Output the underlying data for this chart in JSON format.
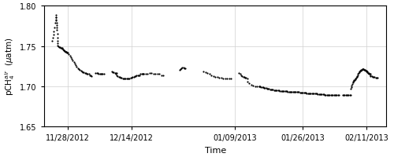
{
  "xlabel": "Time",
  "ylim": [
    1.65,
    1.8
  ],
  "yticks": [
    1.65,
    1.7,
    1.75,
    1.8
  ],
  "background_color": "#ffffff",
  "dot_color": "#000000",
  "dot_size": 2.5,
  "grid_color": "#d0d0d0",
  "xlim_start": "2012-11-22",
  "xlim_end": "2013-02-16",
  "xtick_dates": [
    "2012-11-28",
    "2012-12-14",
    "2013-01-09",
    "2013-01-26",
    "2013-02-11"
  ],
  "xtick_labels": [
    "11/28/2012",
    "12/14/2012",
    "01/09/2013",
    "01/26/2013",
    "02/11/2013"
  ],
  "segments": [
    {
      "dates_offsets_from": "2012-11-24",
      "offsets_hours": [
        0,
        4,
        8,
        12,
        16,
        20,
        22,
        23,
        24,
        25,
        26,
        27,
        28,
        29,
        30,
        32,
        34,
        36
      ],
      "values": [
        1.756,
        1.76,
        1.764,
        1.768,
        1.773,
        1.779,
        1.783,
        1.786,
        1.788,
        1.786,
        1.782,
        1.779,
        1.776,
        1.773,
        1.77,
        1.765,
        1.76,
        1.756
      ]
    },
    {
      "dates_offsets_from": "2012-11-25",
      "offsets_hours": [
        8,
        12,
        16,
        20,
        24,
        28,
        32,
        36,
        40,
        44,
        48
      ],
      "values": [
        1.753,
        1.751,
        1.75,
        1.749,
        1.749,
        1.748,
        1.748,
        1.748,
        1.747,
        1.746,
        1.745
      ]
    },
    {
      "dates_offsets_from": "2012-11-27",
      "offsets_hours": [
        0,
        3,
        6,
        9,
        12,
        15,
        18,
        21
      ],
      "values": [
        1.745,
        1.744,
        1.744,
        1.743,
        1.743,
        1.743,
        1.742,
        1.742
      ]
    },
    {
      "dates_offsets_from": "2012-11-28",
      "offsets_hours": [
        0,
        6,
        12,
        18,
        24,
        30,
        36,
        42,
        48,
        54,
        60,
        66,
        72,
        78,
        84,
        90,
        96,
        102,
        108,
        114,
        120,
        126,
        132,
        138,
        144
      ],
      "values": [
        1.742,
        1.74,
        1.738,
        1.736,
        1.734,
        1.732,
        1.73,
        1.728,
        1.726,
        1.724,
        1.722,
        1.721,
        1.72,
        1.719,
        1.718,
        1.717,
        1.717,
        1.716,
        1.716,
        1.715,
        1.715,
        1.715,
        1.714,
        1.714,
        1.713
      ]
    },
    {
      "dates_offsets_from": "2012-12-05",
      "offsets_hours": [
        0,
        6,
        12,
        18,
        24,
        30,
        36,
        42,
        48
      ],
      "values": [
        1.716,
        1.716,
        1.716,
        1.715,
        1.715,
        1.715,
        1.715,
        1.715,
        1.715
      ]
    },
    {
      "dates_offsets_from": "2012-12-09",
      "offsets_hours": [
        0,
        6,
        12,
        18,
        24,
        30
      ],
      "values": [
        1.718,
        1.717,
        1.717,
        1.716,
        1.716,
        1.716
      ]
    },
    {
      "dates_offsets_from": "2012-12-10",
      "offsets_hours": [
        0,
        6,
        12,
        18,
        24,
        30,
        36,
        42,
        48,
        54,
        60,
        66,
        72,
        78,
        84,
        90,
        96,
        102,
        108,
        114,
        120,
        126,
        132,
        138,
        144,
        150,
        156,
        162,
        168
      ],
      "values": [
        1.715,
        1.714,
        1.713,
        1.712,
        1.712,
        1.711,
        1.711,
        1.71,
        1.71,
        1.71,
        1.71,
        1.71,
        1.71,
        1.71,
        1.71,
        1.711,
        1.711,
        1.712,
        1.712,
        1.713,
        1.713,
        1.714,
        1.714,
        1.714,
        1.714,
        1.715,
        1.715,
        1.715,
        1.715
      ]
    },
    {
      "dates_offsets_from": "2012-12-17",
      "offsets_hours": [
        0,
        12,
        24,
        36,
        48,
        60,
        72,
        84,
        96,
        108,
        120
      ],
      "values": [
        1.715,
        1.715,
        1.715,
        1.716,
        1.716,
        1.715,
        1.715,
        1.715,
        1.715,
        1.714,
        1.714
      ]
    },
    {
      "dates_offsets_from": "2012-12-26",
      "offsets_hours": [
        0,
        6,
        12,
        18,
        24,
        30,
        36
      ],
      "values": [
        1.72,
        1.721,
        1.722,
        1.723,
        1.723,
        1.722,
        1.722
      ]
    },
    {
      "dates_offsets_from": "2013-01-01",
      "offsets_hours": [
        0,
        12,
        24,
        36,
        48,
        60,
        72,
        84,
        96,
        108,
        120,
        132,
        144,
        156,
        168
      ],
      "values": [
        1.718,
        1.717,
        1.716,
        1.715,
        1.714,
        1.713,
        1.712,
        1.712,
        1.711,
        1.711,
        1.71,
        1.71,
        1.71,
        1.71,
        1.71
      ]
    },
    {
      "dates_offsets_from": "2013-01-10",
      "offsets_hours": [
        0,
        6,
        12,
        18,
        24,
        30,
        36,
        42,
        48
      ],
      "values": [
        1.716,
        1.715,
        1.714,
        1.713,
        1.712,
        1.712,
        1.711,
        1.711,
        1.71
      ]
    },
    {
      "dates_offsets_from": "2013-01-12",
      "offsets_hours": [
        0,
        12,
        24,
        36,
        48,
        60,
        72
      ],
      "values": [
        1.706,
        1.704,
        1.702,
        1.701,
        1.7,
        1.7,
        1.7
      ]
    },
    {
      "dates_offsets_from": "2013-01-15",
      "offsets_hours": [
        0,
        6,
        12,
        18,
        24,
        30,
        36,
        42,
        48,
        54,
        60,
        66,
        72,
        78,
        84,
        90,
        96,
        102,
        108,
        114,
        120,
        126,
        132,
        138,
        144,
        150,
        156,
        162,
        168,
        174,
        180,
        186,
        192,
        198,
        204,
        210,
        216,
        222,
        228,
        234,
        240,
        246,
        252,
        258,
        264,
        270,
        276,
        282,
        288,
        294,
        300,
        306,
        312,
        318,
        324,
        330,
        336,
        342,
        348,
        354,
        360,
        366,
        372,
        378,
        384,
        390,
        396,
        402,
        408,
        414,
        420,
        426,
        432,
        438,
        444,
        450,
        456,
        462,
        468,
        474,
        480
      ],
      "values": [
        1.7,
        1.7,
        1.699,
        1.699,
        1.699,
        1.698,
        1.698,
        1.698,
        1.697,
        1.697,
        1.697,
        1.696,
        1.696,
        1.696,
        1.696,
        1.695,
        1.695,
        1.695,
        1.695,
        1.695,
        1.695,
        1.694,
        1.694,
        1.694,
        1.694,
        1.694,
        1.694,
        1.694,
        1.694,
        1.693,
        1.693,
        1.693,
        1.693,
        1.693,
        1.693,
        1.693,
        1.693,
        1.693,
        1.693,
        1.693,
        1.693,
        1.692,
        1.692,
        1.692,
        1.692,
        1.692,
        1.692,
        1.692,
        1.691,
        1.691,
        1.691,
        1.691,
        1.691,
        1.691,
        1.691,
        1.691,
        1.691,
        1.691,
        1.691,
        1.69,
        1.69,
        1.69,
        1.69,
        1.69,
        1.69,
        1.69,
        1.689,
        1.689,
        1.689,
        1.689,
        1.689,
        1.689,
        1.689,
        1.689,
        1.689,
        1.689,
        1.689,
        1.689,
        1.689,
        1.689,
        1.689
      ]
    },
    {
      "dates_offsets_from": "2013-02-05",
      "offsets_hours": [
        0,
        6,
        12,
        18,
        24,
        30,
        36,
        42,
        48
      ],
      "values": [
        1.689,
        1.689,
        1.689,
        1.689,
        1.689,
        1.689,
        1.689,
        1.689,
        1.689
      ]
    },
    {
      "dates_offsets_from": "2013-02-07",
      "offsets_hours": [
        0,
        3,
        6,
        9,
        12,
        15,
        18,
        21,
        24,
        27,
        30,
        33,
        36,
        39,
        42,
        45,
        48,
        51,
        54,
        57,
        60,
        63,
        66,
        69,
        72,
        75,
        78,
        81,
        84,
        87,
        90,
        93,
        96,
        99,
        102,
        105,
        108,
        111,
        114,
        117,
        120
      ],
      "values": [
        1.697,
        1.699,
        1.701,
        1.703,
        1.705,
        1.706,
        1.707,
        1.708,
        1.708,
        1.709,
        1.71,
        1.711,
        1.712,
        1.713,
        1.714,
        1.715,
        1.716,
        1.717,
        1.718,
        1.719,
        1.719,
        1.72,
        1.72,
        1.721,
        1.721,
        1.721,
        1.721,
        1.72,
        1.72,
        1.72,
        1.719,
        1.719,
        1.718,
        1.718,
        1.717,
        1.716,
        1.716,
        1.715,
        1.715,
        1.715,
        1.714
      ]
    },
    {
      "dates_offsets_from": "2013-02-12",
      "offsets_hours": [
        0,
        6,
        12,
        18,
        24,
        30,
        36,
        42
      ],
      "values": [
        1.713,
        1.713,
        1.712,
        1.712,
        1.712,
        1.711,
        1.711,
        1.711
      ]
    }
  ]
}
